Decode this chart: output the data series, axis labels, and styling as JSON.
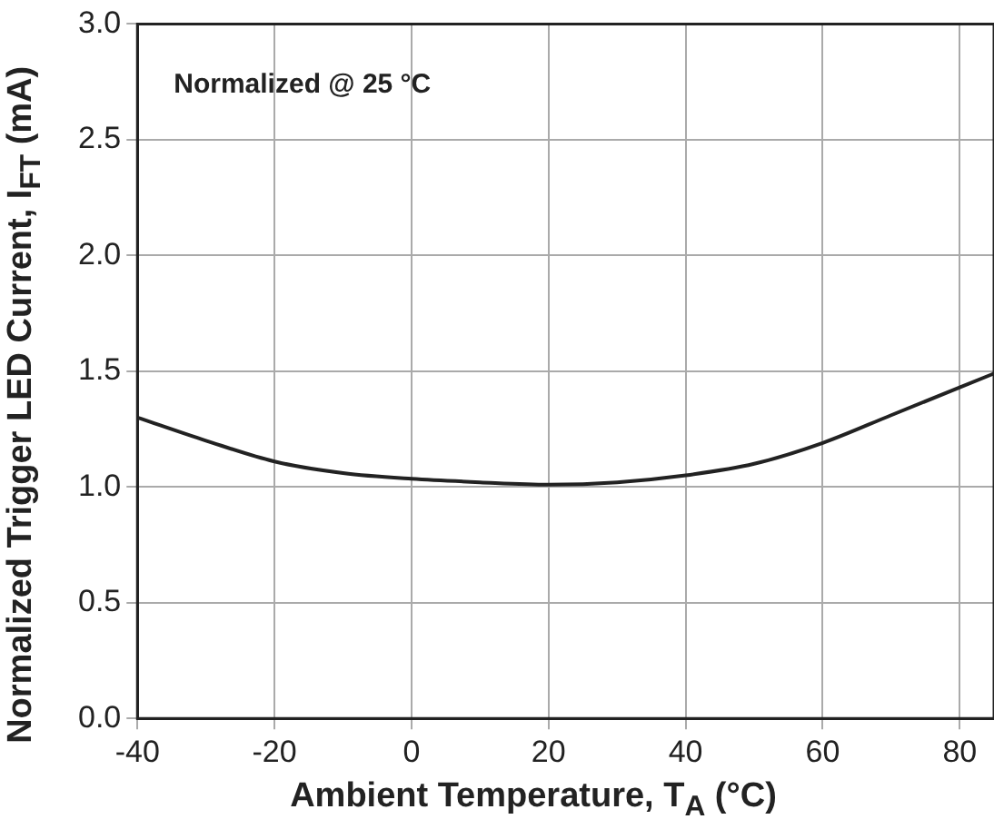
{
  "chart_data": {
    "type": "line",
    "xlabel": "Ambient Temperature, T$_{A}$ (°C)",
    "ylabel": "Normalized Trigger LED Current, I$_{FT}$ (mA)",
    "annotations": [
      "Normalized @ 25 °C"
    ],
    "x": [
      -40,
      -30,
      -20,
      -10,
      0,
      10,
      20,
      30,
      40,
      50,
      60,
      70,
      80,
      85
    ],
    "series": [
      {
        "color": "#222222",
        "values": [
          1.3,
          1.2,
          1.11,
          1.06,
          1.035,
          1.02,
          1.01,
          1.02,
          1.05,
          1.1,
          1.19,
          1.31,
          1.43,
          1.49
        ]
      }
    ],
    "xlim": [
      -40,
      85
    ],
    "xticks": [
      -40,
      -20,
      0,
      20,
      40,
      60,
      80
    ],
    "ylim": [
      0,
      3.0
    ],
    "yticks": [
      {
        "value": 0,
        "label": "0.0"
      },
      0.5,
      {
        "value": 1,
        "label": "1.0"
      },
      1.5,
      {
        "value": 2,
        "label": "2.0"
      },
      2.5,
      {
        "value": 3,
        "label": "3.0"
      }
    ],
    "grid": true,
    "legend": false,
    "marker": "none",
    "line_style": "solid"
  }
}
